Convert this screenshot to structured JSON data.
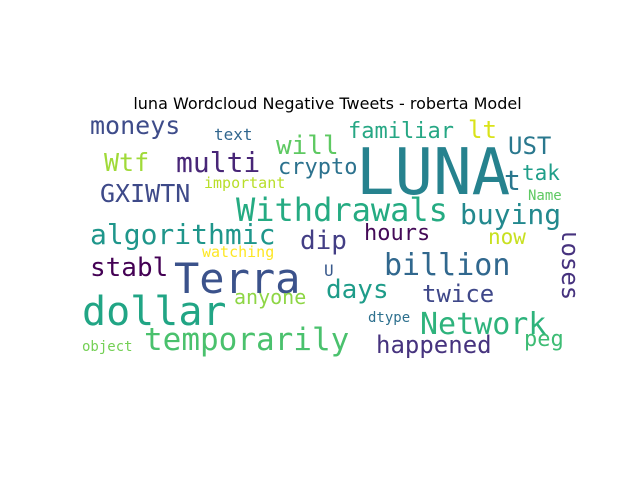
{
  "chart_data": {
    "type": "wordcloud",
    "title": "luna Wordcloud Negative Tweets - roberta Model",
    "words": [
      {
        "text": "LUNA",
        "size": 64,
        "color": "#26828e"
      },
      {
        "text": "Terra",
        "size": 42,
        "color": "#3b528b"
      },
      {
        "text": "dollar",
        "size": 40,
        "color": "#21a585"
      },
      {
        "text": "Withdrawals",
        "size": 32,
        "color": "#25ab82"
      },
      {
        "text": "temporarily",
        "size": 31,
        "color": "#4ac16d"
      },
      {
        "text": "Network",
        "size": 30,
        "color": "#2eb37c"
      },
      {
        "text": "billion",
        "size": 30,
        "color": "#31688e"
      },
      {
        "text": "algorithmic",
        "size": 28,
        "color": "#1f968b"
      },
      {
        "text": "buying",
        "size": 28,
        "color": "#23898e"
      },
      {
        "text": "multi",
        "size": 28,
        "color": "#482677"
      },
      {
        "text": "GXIWTN",
        "size": 25,
        "color": "#3e4a89"
      },
      {
        "text": "moneys",
        "size": 25,
        "color": "#3e4c8a"
      },
      {
        "text": "will",
        "size": 26,
        "color": "#5ec962"
      },
      {
        "text": "stabl",
        "size": 26,
        "color": "#440154"
      },
      {
        "text": "Wtf",
        "size": 25,
        "color": "#a0da39"
      },
      {
        "text": "dip",
        "size": 26,
        "color": "#433e85"
      },
      {
        "text": "days",
        "size": 26,
        "color": "#1e9c89"
      },
      {
        "text": "happened",
        "size": 24,
        "color": "#46337e"
      },
      {
        "text": "twice",
        "size": 24,
        "color": "#3f4889"
      },
      {
        "text": "loses",
        "size": 24,
        "color": "#46327e"
      },
      {
        "text": "UST",
        "size": 24,
        "color": "#2a788e"
      },
      {
        "text": "familiar",
        "size": 22,
        "color": "#26a784"
      },
      {
        "text": "crypto",
        "size": 22,
        "color": "#2c728e"
      },
      {
        "text": "hours",
        "size": 22,
        "color": "#440a57"
      },
      {
        "text": "lt",
        "size": 24,
        "color": "#dae319"
      },
      {
        "text": "t",
        "size": 28,
        "color": "#2a778e"
      },
      {
        "text": "tak",
        "size": 21,
        "color": "#1f9e89"
      },
      {
        "text": "now",
        "size": 21,
        "color": "#c8e020"
      },
      {
        "text": "peg",
        "size": 22,
        "color": "#3dbc74"
      },
      {
        "text": "anyone",
        "size": 20,
        "color": "#8ed645"
      },
      {
        "text": "text",
        "size": 16,
        "color": "#31668e"
      },
      {
        "text": "important",
        "size": 15,
        "color": "#b8de29"
      },
      {
        "text": "watching",
        "size": 15,
        "color": "#fde725"
      },
      {
        "text": "Name",
        "size": 14,
        "color": "#5ec962"
      },
      {
        "text": "dtype",
        "size": 14,
        "color": "#2d708e"
      },
      {
        "text": "object",
        "size": 14,
        "color": "#74d055"
      },
      {
        "text": "U",
        "size": 16,
        "color": "#38598c"
      }
    ]
  }
}
